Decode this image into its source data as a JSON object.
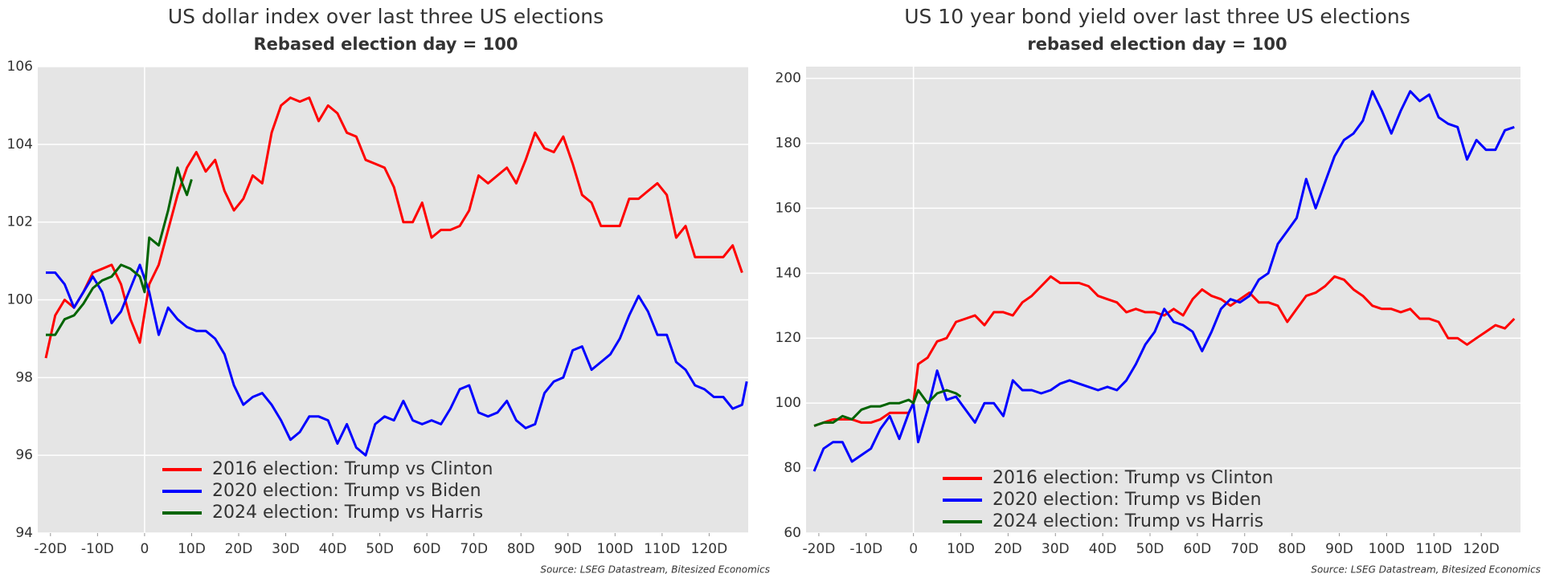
{
  "chart_data": [
    {
      "type": "line",
      "title": "US dollar index over last three US elections",
      "subtitle": "Rebased election day = 100",
      "source": "Source: LSEG Datastream, Bitesized Economics",
      "xlim": [
        -22.7,
        128.3
      ],
      "ylim": [
        94,
        106
      ],
      "xticks": [
        {
          "value": -20,
          "label": "-20D"
        },
        {
          "value": -10,
          "label": "-10D"
        },
        0,
        {
          "value": 10,
          "label": "10D"
        },
        {
          "value": 20,
          "label": "20D"
        },
        {
          "value": 30,
          "label": "30D"
        },
        {
          "value": 40,
          "label": "40D"
        },
        {
          "value": 50,
          "label": "50D"
        },
        {
          "value": 60,
          "label": "60D"
        },
        {
          "value": 70,
          "label": "70D"
        },
        {
          "value": 80,
          "label": "80D"
        },
        {
          "value": 90,
          "label": "90D"
        },
        {
          "value": 100,
          "label": "100D"
        },
        {
          "value": 110,
          "label": "110D"
        },
        {
          "value": 120,
          "label": "120D"
        }
      ],
      "yticks": [
        94,
        96,
        98,
        100,
        102,
        104,
        106
      ],
      "grid": true,
      "vline": 0,
      "legend": "lower center",
      "series": [
        {
          "name": "2016 election: Trump vs Clinton",
          "color": "#ff0000",
          "x": [
            -21,
            -19,
            -17,
            -15,
            -13,
            -11,
            -9,
            -7,
            -5,
            -3,
            -1,
            1,
            3,
            5,
            7,
            9,
            11,
            13,
            15,
            17,
            19,
            21,
            23,
            25,
            27,
            29,
            31,
            33,
            35,
            37,
            39,
            41,
            43,
            45,
            47,
            49,
            51,
            53,
            55,
            57,
            59,
            61,
            63,
            65,
            67,
            69,
            71,
            73,
            75,
            77,
            79,
            81,
            83,
            85,
            87,
            89,
            91,
            93,
            95,
            97,
            99,
            101,
            103,
            105,
            107,
            109,
            111,
            113,
            115,
            117,
            119,
            121,
            123,
            125,
            127
          ],
          "values": [
            98.5,
            99.6,
            100.0,
            99.8,
            100.2,
            100.7,
            100.8,
            100.9,
            100.4,
            99.5,
            98.9,
            100.4,
            100.9,
            101.8,
            102.7,
            103.4,
            103.8,
            103.3,
            103.6,
            102.8,
            102.3,
            102.6,
            103.2,
            103.0,
            104.3,
            105.0,
            105.2,
            105.1,
            105.2,
            104.6,
            105.0,
            104.8,
            104.3,
            104.2,
            103.6,
            103.5,
            103.4,
            102.9,
            102.0,
            102.0,
            102.5,
            101.6,
            101.8,
            101.8,
            101.9,
            102.3,
            103.2,
            103.0,
            103.2,
            103.4,
            103.0,
            103.6,
            104.3,
            103.9,
            103.8,
            104.2,
            103.5,
            102.7,
            102.5,
            101.9,
            101.9,
            101.9,
            102.6,
            102.6,
            102.8,
            103.0,
            102.7,
            101.6,
            101.9,
            101.1,
            101.1,
            101.1,
            101.1,
            101.4,
            100.7
          ]
        },
        {
          "name": "2020 election: Trump vs Biden",
          "color": "#0000ff",
          "x": [
            -21,
            -19,
            -17,
            -15,
            -13,
            -11,
            -9,
            -7,
            -5,
            -3,
            -1,
            1,
            3,
            5,
            7,
            9,
            11,
            13,
            15,
            17,
            19,
            21,
            23,
            25,
            27,
            29,
            31,
            33,
            35,
            37,
            39,
            41,
            43,
            45,
            47,
            49,
            51,
            53,
            55,
            57,
            59,
            61,
            63,
            65,
            67,
            69,
            71,
            73,
            75,
            77,
            79,
            81,
            83,
            85,
            87,
            89,
            91,
            93,
            95,
            97,
            99,
            101,
            103,
            105,
            107,
            109,
            111,
            113,
            115,
            117,
            119,
            121,
            123,
            125,
            127,
            128
          ],
          "values": [
            100.7,
            100.7,
            100.4,
            99.8,
            100.2,
            100.6,
            100.2,
            99.4,
            99.7,
            100.3,
            100.9,
            100.2,
            99.1,
            99.8,
            99.5,
            99.3,
            99.2,
            99.2,
            99.0,
            98.6,
            97.8,
            97.3,
            97.5,
            97.6,
            97.3,
            96.9,
            96.4,
            96.6,
            97.0,
            97.0,
            96.9,
            96.3,
            96.8,
            96.2,
            96.0,
            96.8,
            97.0,
            96.9,
            97.4,
            96.9,
            96.8,
            96.9,
            96.8,
            97.2,
            97.7,
            97.8,
            97.1,
            97.0,
            97.1,
            97.4,
            96.9,
            96.7,
            96.8,
            97.6,
            97.9,
            98.0,
            98.7,
            98.8,
            98.2,
            98.4,
            98.6,
            99.0,
            99.6,
            100.1,
            99.7,
            99.1,
            99.1,
            98.4,
            98.2,
            97.8,
            97.7,
            97.5,
            97.5,
            97.2,
            97.3,
            97.9
          ]
        },
        {
          "name": "2024 election: Trump vs Harris",
          "color": "#006400",
          "x": [
            -21,
            -19,
            -17,
            -15,
            -13,
            -11,
            -9,
            -7,
            -5,
            -3,
            -1,
            0,
            1,
            3,
            5,
            7,
            8,
            9,
            10
          ],
          "values": [
            99.1,
            99.1,
            99.5,
            99.6,
            99.9,
            100.3,
            100.5,
            100.6,
            100.9,
            100.8,
            100.6,
            100.2,
            101.6,
            101.4,
            102.3,
            103.4,
            103.0,
            102.7,
            103.1
          ]
        }
      ]
    },
    {
      "type": "line",
      "title": "US 10 year bond yield over last three US elections",
      "subtitle": "rebased election day = 100",
      "source": "Source: LSEG Datastream, Bitesized Economics",
      "xlim": [
        -22.7,
        128.3
      ],
      "ylim": [
        60,
        203.6
      ],
      "xticks": [
        {
          "value": -20,
          "label": "-20D"
        },
        {
          "value": -10,
          "label": "-10D"
        },
        0,
        {
          "value": 10,
          "label": "10D"
        },
        {
          "value": 20,
          "label": "20D"
        },
        {
          "value": 30,
          "label": "30D"
        },
        {
          "value": 40,
          "label": "40D"
        },
        {
          "value": 50,
          "label": "50D"
        },
        {
          "value": 60,
          "label": "60D"
        },
        {
          "value": 70,
          "label": "70D"
        },
        {
          "value": 80,
          "label": "80D"
        },
        {
          "value": 90,
          "label": "90D"
        },
        {
          "value": 100,
          "label": "100D"
        },
        {
          "value": 110,
          "label": "110D"
        },
        {
          "value": 120,
          "label": "120D"
        }
      ],
      "yticks": [
        60,
        80,
        100,
        120,
        140,
        160,
        180,
        200
      ],
      "grid": true,
      "vline": 0,
      "legend": "lower center",
      "series": [
        {
          "name": "2016 election: Trump vs Clinton",
          "color": "#ff0000",
          "x": [
            -21,
            -19,
            -17,
            -15,
            -13,
            -11,
            -9,
            -7,
            -5,
            -3,
            -1,
            0,
            1,
            3,
            5,
            7,
            9,
            11,
            13,
            15,
            17,
            19,
            21,
            23,
            25,
            27,
            29,
            31,
            33,
            35,
            37,
            39,
            41,
            43,
            45,
            47,
            49,
            51,
            53,
            55,
            57,
            59,
            61,
            63,
            65,
            67,
            69,
            71,
            73,
            75,
            77,
            79,
            81,
            83,
            85,
            87,
            89,
            91,
            93,
            95,
            97,
            99,
            101,
            103,
            105,
            107,
            109,
            111,
            113,
            115,
            117,
            119,
            121,
            123,
            125,
            127
          ],
          "values": [
            93,
            94,
            95,
            95,
            95,
            94,
            94,
            95,
            97,
            97,
            97,
            100,
            112,
            114,
            119,
            120,
            125,
            126,
            127,
            124,
            128,
            128,
            127,
            131,
            133,
            136,
            139,
            137,
            137,
            137,
            136,
            133,
            132,
            131,
            128,
            129,
            128,
            128,
            127,
            129,
            127,
            132,
            135,
            133,
            132,
            130,
            132,
            134,
            131,
            131,
            130,
            125,
            129,
            133,
            134,
            136,
            139,
            138,
            135,
            133,
            130,
            129,
            129,
            128,
            129,
            126,
            126,
            125,
            120,
            120,
            118,
            120,
            122,
            124,
            123,
            126
          ]
        },
        {
          "name": "2020 election: Trump vs Biden",
          "color": "#0000ff",
          "x": [
            -21,
            -19,
            -17,
            -15,
            -13,
            -11,
            -9,
            -7,
            -5,
            -3,
            -1,
            0,
            1,
            3,
            5,
            7,
            9,
            11,
            13,
            15,
            17,
            19,
            21,
            23,
            25,
            27,
            29,
            31,
            33,
            35,
            37,
            39,
            41,
            43,
            45,
            47,
            49,
            51,
            53,
            55,
            57,
            59,
            61,
            63,
            65,
            67,
            69,
            71,
            73,
            75,
            77,
            79,
            81,
            83,
            85,
            87,
            89,
            91,
            93,
            95,
            97,
            99,
            101,
            103,
            105,
            107,
            109,
            111,
            113,
            115,
            117,
            119,
            121,
            123,
            125,
            127
          ],
          "values": [
            79,
            86,
            88,
            88,
            82,
            84,
            86,
            92,
            96,
            89,
            97,
            100,
            88,
            98,
            110,
            101,
            102,
            98,
            94,
            100,
            100,
            96,
            107,
            104,
            104,
            103,
            104,
            106,
            107,
            106,
            105,
            104,
            105,
            104,
            107,
            112,
            118,
            122,
            129,
            125,
            124,
            122,
            116,
            122,
            129,
            132,
            131,
            133,
            138,
            140,
            149,
            153,
            157,
            169,
            160,
            168,
            176,
            181,
            183,
            187,
            196,
            190,
            183,
            190,
            196,
            193,
            195,
            188,
            186,
            185,
            175,
            181,
            178,
            178,
            184,
            185
          ]
        },
        {
          "name": "2024 election: Trump vs Harris",
          "color": "#006400",
          "x": [
            -21,
            -19,
            -17,
            -15,
            -13,
            -11,
            -9,
            -7,
            -5,
            -3,
            -1,
            0,
            1,
            3,
            5,
            7,
            9,
            10
          ],
          "values": [
            93,
            94,
            94,
            96,
            95,
            98,
            99,
            99,
            100,
            100,
            101,
            100,
            104,
            100,
            103,
            104,
            103,
            102
          ]
        }
      ]
    }
  ]
}
